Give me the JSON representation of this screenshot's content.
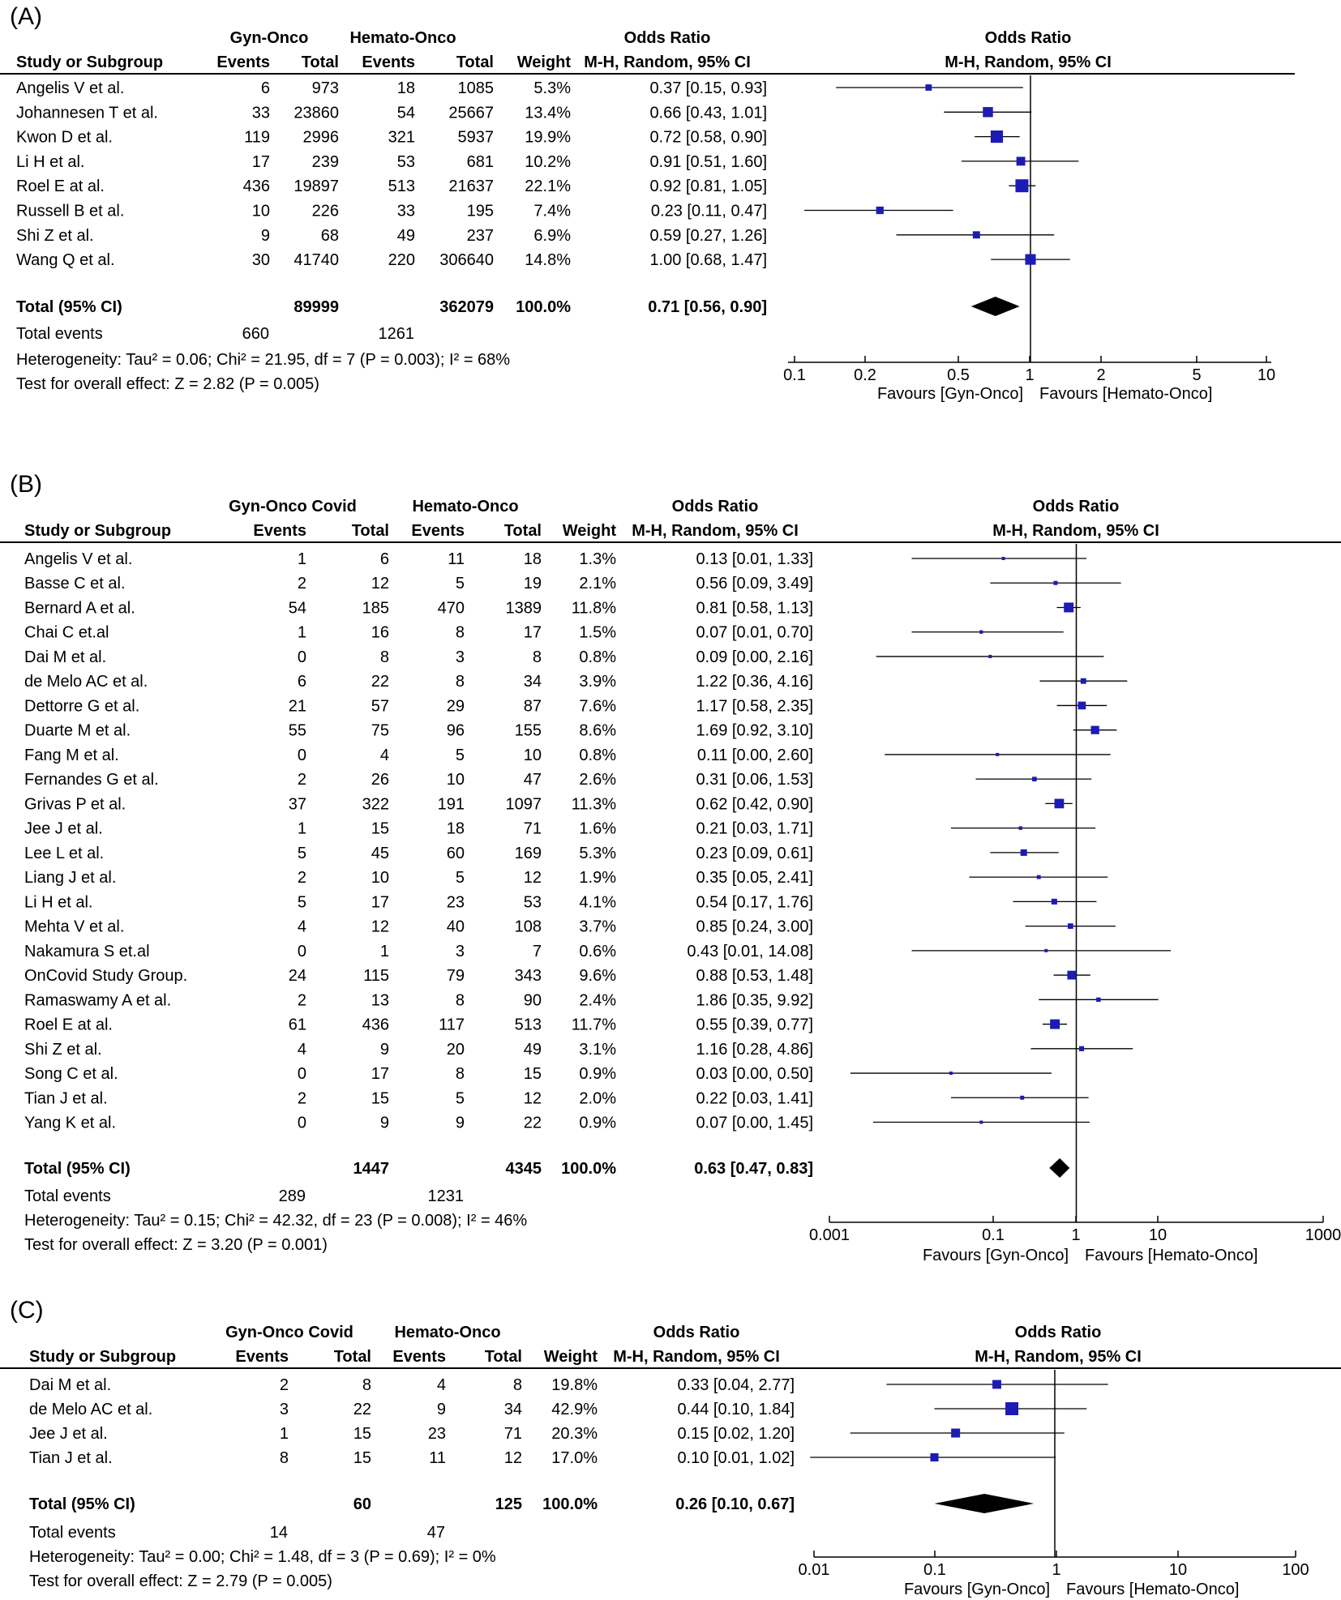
{
  "panels": [
    {
      "label": "(A)",
      "group1": "Gyn-Onco",
      "group2": "Hemato-Onco",
      "headers": {
        "study": "Study or Subgroup",
        "events": "Events",
        "total": "Total",
        "weight": "Weight",
        "or_title": "Odds Ratio",
        "or_method": "M-H, Random, 95% CI"
      },
      "studies": [
        {
          "name": "Angelis V et al.",
          "e1": "6",
          "t1": "973",
          "e2": "18",
          "t2": "1085",
          "weight": "5.3%",
          "ci": "0.37 [0.15, 0.93]"
        },
        {
          "name": "Johannesen T et al.",
          "e1": "33",
          "t1": "23860",
          "e2": "54",
          "t2": "25667",
          "weight": "13.4%",
          "ci": "0.66 [0.43, 1.01]"
        },
        {
          "name": "Kwon D et al.",
          "e1": "119",
          "t1": "2996",
          "e2": "321",
          "t2": "5937",
          "weight": "19.9%",
          "ci": "0.72 [0.58, 0.90]"
        },
        {
          "name": "Li H et al.",
          "e1": "17",
          "t1": "239",
          "e2": "53",
          "t2": "681",
          "weight": "10.2%",
          "ci": "0.91 [0.51, 1.60]"
        },
        {
          "name": "Roel E at al.",
          "e1": "436",
          "t1": "19897",
          "e2": "513",
          "t2": "21637",
          "weight": "22.1%",
          "ci": "0.92 [0.81, 1.05]"
        },
        {
          "name": "Russell B et al.",
          "e1": "10",
          "t1": "226",
          "e2": "33",
          "t2": "195",
          "weight": "7.4%",
          "ci": "0.23 [0.11, 0.47]"
        },
        {
          "name": "Shi Z et al.",
          "e1": "9",
          "t1": "68",
          "e2": "49",
          "t2": "237",
          "weight": "6.9%",
          "ci": "0.59 [0.27, 1.26]"
        },
        {
          "name": "Wang Q et al.",
          "e1": "30",
          "t1": "41740",
          "e2": "220",
          "t2": "306640",
          "weight": "14.8%",
          "ci": "1.00 [0.68, 1.47]"
        }
      ],
      "total": {
        "label": "Total (95% CI)",
        "t1": "89999",
        "t2": "362079",
        "weight": "100.0%",
        "ci": "0.71 [0.56, 0.90]"
      },
      "total_events": {
        "label": "Total events",
        "e1": "660",
        "e2": "1261"
      },
      "heterogeneity": "Heterogeneity: Tau² = 0.06; Chi² = 21.95, df = 7 (P = 0.003); I² = 68%",
      "overall": "Test for overall effect: Z = 2.82 (P = 0.005)",
      "ticks": [
        "0.1",
        "0.2",
        "0.5",
        "1",
        "2",
        "5",
        "10"
      ],
      "favours_left": "Favours [Gyn-Onco]",
      "favours_right": "Favours [Hemato-Onco]"
    },
    {
      "label": "(B)",
      "group1": "Gyn-Onco Covid",
      "group2": "Hemato-Onco",
      "headers": {
        "study": "Study or Subgroup",
        "events": "Events",
        "total": "Total",
        "weight": "Weight",
        "or_title": "Odds Ratio",
        "or_method": "M-H, Random, 95% CI"
      },
      "studies": [
        {
          "name": "Angelis V et al.",
          "e1": "1",
          "t1": "6",
          "e2": "11",
          "t2": "18",
          "weight": "1.3%",
          "ci": "0.13 [0.01, 1.33]"
        },
        {
          "name": "Basse C et al.",
          "e1": "2",
          "t1": "12",
          "e2": "5",
          "t2": "19",
          "weight": "2.1%",
          "ci": "0.56 [0.09, 3.49]"
        },
        {
          "name": "Bernard A et al.",
          "e1": "54",
          "t1": "185",
          "e2": "470",
          "t2": "1389",
          "weight": "11.8%",
          "ci": "0.81 [0.58, 1.13]"
        },
        {
          "name": "Chai C et.al",
          "e1": "1",
          "t1": "16",
          "e2": "8",
          "t2": "17",
          "weight": "1.5%",
          "ci": "0.07 [0.01, 0.70]"
        },
        {
          "name": "Dai M et al.",
          "e1": "0",
          "t1": "8",
          "e2": "3",
          "t2": "8",
          "weight": "0.8%",
          "ci": "0.09 [0.00, 2.16]"
        },
        {
          "name": "de Melo AC et al.",
          "e1": "6",
          "t1": "22",
          "e2": "8",
          "t2": "34",
          "weight": "3.9%",
          "ci": "1.22 [0.36, 4.16]"
        },
        {
          "name": "Dettorre G et al.",
          "e1": "21",
          "t1": "57",
          "e2": "29",
          "t2": "87",
          "weight": "7.6%",
          "ci": "1.17 [0.58, 2.35]"
        },
        {
          "name": "Duarte M et al.",
          "e1": "55",
          "t1": "75",
          "e2": "96",
          "t2": "155",
          "weight": "8.6%",
          "ci": "1.69 [0.92, 3.10]"
        },
        {
          "name": "Fang M et al.",
          "e1": "0",
          "t1": "4",
          "e2": "5",
          "t2": "10",
          "weight": "0.8%",
          "ci": "0.11 [0.00, 2.60]"
        },
        {
          "name": "Fernandes G et al.",
          "e1": "2",
          "t1": "26",
          "e2": "10",
          "t2": "47",
          "weight": "2.6%",
          "ci": "0.31 [0.06, 1.53]"
        },
        {
          "name": "Grivas P et al.",
          "e1": "37",
          "t1": "322",
          "e2": "191",
          "t2": "1097",
          "weight": "11.3%",
          "ci": "0.62 [0.42, 0.90]"
        },
        {
          "name": "Jee J et al.",
          "e1": "1",
          "t1": "15",
          "e2": "18",
          "t2": "71",
          "weight": "1.6%",
          "ci": "0.21 [0.03, 1.71]"
        },
        {
          "name": "Lee L et al.",
          "e1": "5",
          "t1": "45",
          "e2": "60",
          "t2": "169",
          "weight": "5.3%",
          "ci": "0.23 [0.09, 0.61]"
        },
        {
          "name": "Liang J et al.",
          "e1": "2",
          "t1": "10",
          "e2": "5",
          "t2": "12",
          "weight": "1.9%",
          "ci": "0.35 [0.05, 2.41]"
        },
        {
          "name": "Li H et al.",
          "e1": "5",
          "t1": "17",
          "e2": "23",
          "t2": "53",
          "weight": "4.1%",
          "ci": "0.54 [0.17, 1.76]"
        },
        {
          "name": "Mehta V et al.",
          "e1": "4",
          "t1": "12",
          "e2": "40",
          "t2": "108",
          "weight": "3.7%",
          "ci": "0.85 [0.24, 3.00]"
        },
        {
          "name": "Nakamura S et.al",
          "e1": "0",
          "t1": "1",
          "e2": "3",
          "t2": "7",
          "weight": "0.6%",
          "ci": "0.43 [0.01, 14.08]"
        },
        {
          "name": "OnCovid Study Group.",
          "e1": "24",
          "t1": "115",
          "e2": "79",
          "t2": "343",
          "weight": "9.6%",
          "ci": "0.88 [0.53, 1.48]"
        },
        {
          "name": "Ramaswamy A et al.",
          "e1": "2",
          "t1": "13",
          "e2": "8",
          "t2": "90",
          "weight": "2.4%",
          "ci": "1.86 [0.35, 9.92]"
        },
        {
          "name": "Roel E at al.",
          "e1": "61",
          "t1": "436",
          "e2": "117",
          "t2": "513",
          "weight": "11.7%",
          "ci": "0.55 [0.39, 0.77]"
        },
        {
          "name": "Shi Z et al.",
          "e1": "4",
          "t1": "9",
          "e2": "20",
          "t2": "49",
          "weight": "3.1%",
          "ci": "1.16 [0.28, 4.86]"
        },
        {
          "name": "Song C et al.",
          "e1": "0",
          "t1": "17",
          "e2": "8",
          "t2": "15",
          "weight": "0.9%",
          "ci": "0.03 [0.00, 0.50]"
        },
        {
          "name": "Tian J et al.",
          "e1": "2",
          "t1": "15",
          "e2": "5",
          "t2": "12",
          "weight": "2.0%",
          "ci": "0.22 [0.03, 1.41]"
        },
        {
          "name": "Yang K et al.",
          "e1": "0",
          "t1": "9",
          "e2": "9",
          "t2": "22",
          "weight": "0.9%",
          "ci": "0.07 [0.00, 1.45]"
        }
      ],
      "total": {
        "label": "Total (95% CI)",
        "t1": "1447",
        "t2": "4345",
        "weight": "100.0%",
        "ci": "0.63 [0.47, 0.83]"
      },
      "total_events": {
        "label": "Total events",
        "e1": "289",
        "e2": "1231"
      },
      "heterogeneity": "Heterogeneity: Tau² = 0.15; Chi² = 42.32, df = 23 (P = 0.008); I² = 46%",
      "overall": "Test for overall effect: Z = 3.20 (P = 0.001)",
      "ticks": [
        "0.001",
        "0.1",
        "1",
        "10",
        "1000"
      ],
      "favours_left": "Favours [Gyn-Onco]",
      "favours_right": "Favours [Hemato-Onco]"
    },
    {
      "label": "(C)",
      "group1": "Gyn-Onco Covid",
      "group2": "Hemato-Onco",
      "headers": {
        "study": "Study or Subgroup",
        "events": "Events",
        "total": "Total",
        "weight": "Weight",
        "or_title": "Odds Ratio",
        "or_method": "M-H, Random, 95% CI"
      },
      "studies": [
        {
          "name": "Dai M et al.",
          "e1": "2",
          "t1": "8",
          "e2": "4",
          "t2": "8",
          "weight": "19.8%",
          "ci": "0.33 [0.04, 2.77]"
        },
        {
          "name": "de Melo AC et al.",
          "e1": "3",
          "t1": "22",
          "e2": "9",
          "t2": "34",
          "weight": "42.9%",
          "ci": "0.44 [0.10, 1.84]"
        },
        {
          "name": "Jee J et al.",
          "e1": "1",
          "t1": "15",
          "e2": "23",
          "t2": "71",
          "weight": "20.3%",
          "ci": "0.15 [0.02, 1.20]"
        },
        {
          "name": "Tian J et al.",
          "e1": "8",
          "t1": "15",
          "e2": "11",
          "t2": "12",
          "weight": "17.0%",
          "ci": "0.10 [0.01, 1.02]"
        }
      ],
      "total": {
        "label": "Total (95% CI)",
        "t1": "60",
        "t2": "125",
        "weight": "100.0%",
        "ci": "0.26 [0.10, 0.67]"
      },
      "total_events": {
        "label": "Total events",
        "e1": "14",
        "e2": "47"
      },
      "heterogeneity": "Heterogeneity: Tau² = 0.00; Chi² = 1.48, df = 3 (P = 0.69); I² = 0%",
      "overall": "Test for overall effect: Z = 2.79 (P = 0.005)",
      "ticks": [
        "0.01",
        "0.1",
        "1",
        "10",
        "100"
      ],
      "favours_left": "Favours [Gyn-Onco]",
      "favours_right": "Favours [Hemato-Onco]"
    }
  ],
  "colors": {
    "marker": "#1c1cb4",
    "text": "#000000",
    "line": "#000000"
  },
  "chart_data": [
    {
      "type": "forest",
      "scale": "log",
      "xlim": [
        0.1,
        10
      ],
      "studies": [
        {
          "name": "Angelis V et al.",
          "or": 0.37,
          "lo": 0.15,
          "hi": 0.93,
          "weight": 5.3
        },
        {
          "name": "Johannesen T et al.",
          "or": 0.66,
          "lo": 0.43,
          "hi": 1.01,
          "weight": 13.4
        },
        {
          "name": "Kwon D et al.",
          "or": 0.72,
          "lo": 0.58,
          "hi": 0.9,
          "weight": 19.9
        },
        {
          "name": "Li H et al.",
          "or": 0.91,
          "lo": 0.51,
          "hi": 1.6,
          "weight": 10.2
        },
        {
          "name": "Roel E at al.",
          "or": 0.92,
          "lo": 0.81,
          "hi": 1.05,
          "weight": 22.1
        },
        {
          "name": "Russell B et al.",
          "or": 0.23,
          "lo": 0.11,
          "hi": 0.47,
          "weight": 7.4
        },
        {
          "name": "Shi Z et al.",
          "or": 0.59,
          "lo": 0.27,
          "hi": 1.26,
          "weight": 6.9
        },
        {
          "name": "Wang Q et al.",
          "or": 1.0,
          "lo": 0.68,
          "hi": 1.47,
          "weight": 14.8
        }
      ],
      "pooled": {
        "or": 0.71,
        "lo": 0.56,
        "hi": 0.9
      }
    },
    {
      "type": "forest",
      "scale": "log",
      "xlim": [
        0.001,
        1000
      ],
      "studies": [
        {
          "name": "Angelis V et al.",
          "or": 0.13,
          "lo": 0.01,
          "hi": 1.33,
          "weight": 1.3
        },
        {
          "name": "Basse C et al.",
          "or": 0.56,
          "lo": 0.09,
          "hi": 3.49,
          "weight": 2.1
        },
        {
          "name": "Bernard A et al.",
          "or": 0.81,
          "lo": 0.58,
          "hi": 1.13,
          "weight": 11.8
        },
        {
          "name": "Chai C et.al",
          "or": 0.07,
          "lo": 0.01,
          "hi": 0.7,
          "weight": 1.5
        },
        {
          "name": "Dai M et al.",
          "or": 0.09,
          "lo": 0.0037,
          "hi": 2.16,
          "weight": 0.8
        },
        {
          "name": "de Melo AC et al.",
          "or": 1.22,
          "lo": 0.36,
          "hi": 4.16,
          "weight": 3.9
        },
        {
          "name": "Dettorre G et al.",
          "or": 1.17,
          "lo": 0.58,
          "hi": 2.35,
          "weight": 7.6
        },
        {
          "name": "Duarte M et al.",
          "or": 1.69,
          "lo": 0.92,
          "hi": 3.1,
          "weight": 8.6
        },
        {
          "name": "Fang M et al.",
          "or": 0.11,
          "lo": 0.0047,
          "hi": 2.6,
          "weight": 0.8
        },
        {
          "name": "Fernandes G et al.",
          "or": 0.31,
          "lo": 0.06,
          "hi": 1.53,
          "weight": 2.6
        },
        {
          "name": "Grivas P et al.",
          "or": 0.62,
          "lo": 0.42,
          "hi": 0.9,
          "weight": 11.3
        },
        {
          "name": "Jee J et al.",
          "or": 0.21,
          "lo": 0.03,
          "hi": 1.71,
          "weight": 1.6
        },
        {
          "name": "Lee L et al.",
          "or": 0.23,
          "lo": 0.09,
          "hi": 0.61,
          "weight": 5.3
        },
        {
          "name": "Liang J et al.",
          "or": 0.35,
          "lo": 0.05,
          "hi": 2.41,
          "weight": 1.9
        },
        {
          "name": "Li H et al.",
          "or": 0.54,
          "lo": 0.17,
          "hi": 1.76,
          "weight": 4.1
        },
        {
          "name": "Mehta V et al.",
          "or": 0.85,
          "lo": 0.24,
          "hi": 3.0,
          "weight": 3.7
        },
        {
          "name": "Nakamura S et.al",
          "or": 0.43,
          "lo": 0.01,
          "hi": 14.08,
          "weight": 0.6
        },
        {
          "name": "OnCovid Study Group.",
          "or": 0.88,
          "lo": 0.53,
          "hi": 1.48,
          "weight": 9.6
        },
        {
          "name": "Ramaswamy A et al.",
          "or": 1.86,
          "lo": 0.35,
          "hi": 9.92,
          "weight": 2.4
        },
        {
          "name": "Roel E at al.",
          "or": 0.55,
          "lo": 0.39,
          "hi": 0.77,
          "weight": 11.7
        },
        {
          "name": "Shi Z et al.",
          "or": 1.16,
          "lo": 0.28,
          "hi": 4.86,
          "weight": 3.1
        },
        {
          "name": "Song C et al.",
          "or": 0.03,
          "lo": 0.0018,
          "hi": 0.5,
          "weight": 0.9
        },
        {
          "name": "Tian J et al.",
          "or": 0.22,
          "lo": 0.03,
          "hi": 1.41,
          "weight": 2.0
        },
        {
          "name": "Yang K et al.",
          "or": 0.07,
          "lo": 0.0034,
          "hi": 1.45,
          "weight": 0.9
        }
      ],
      "pooled": {
        "or": 0.63,
        "lo": 0.47,
        "hi": 0.83
      }
    },
    {
      "type": "forest",
      "scale": "log",
      "xlim": [
        0.01,
        100
      ],
      "studies": [
        {
          "name": "Dai M et al.",
          "or": 0.33,
          "lo": 0.04,
          "hi": 2.77,
          "weight": 19.8
        },
        {
          "name": "de Melo AC et al.",
          "or": 0.44,
          "lo": 0.1,
          "hi": 1.84,
          "weight": 42.9
        },
        {
          "name": "Jee J et al.",
          "or": 0.15,
          "lo": 0.02,
          "hi": 1.2,
          "weight": 20.3
        },
        {
          "name": "Tian J et al.",
          "or": 0.1,
          "lo": 0.0093,
          "hi": 1.02,
          "weight": 17.0
        }
      ],
      "pooled": {
        "or": 0.26,
        "lo": 0.1,
        "hi": 0.67
      }
    }
  ]
}
